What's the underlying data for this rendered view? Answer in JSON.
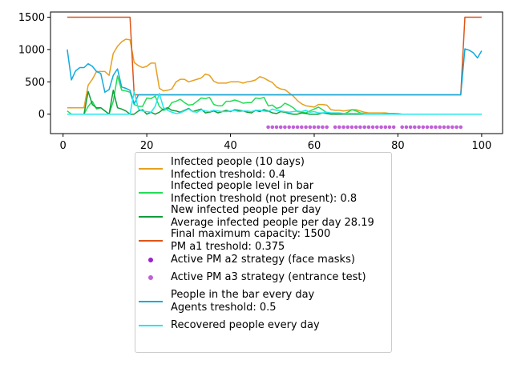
{
  "chart_data": {
    "type": "line",
    "xlim": [
      -3,
      105
    ],
    "ylim": [
      -300,
      1580
    ],
    "xticks": [
      0,
      20,
      40,
      60,
      80,
      100
    ],
    "yticks": [
      0,
      500,
      1000,
      1500
    ],
    "grid": false,
    "legend_placement": "below",
    "series": [
      {
        "name": "Infected people (10 days)\nInfection treshold: 0.4",
        "color": "#e6a020",
        "x": [
          1,
          2,
          3,
          4,
          5,
          6,
          7,
          8,
          9,
          10,
          11,
          12,
          13,
          14,
          15,
          16,
          17,
          18,
          19,
          20,
          21,
          22,
          23,
          24,
          25,
          26,
          27,
          28,
          29,
          30,
          31,
          32,
          33,
          34,
          35,
          36,
          37,
          38,
          39,
          40,
          41,
          42,
          43,
          44,
          45,
          46,
          47,
          48,
          49,
          50,
          51,
          52,
          53,
          54,
          55,
          56,
          57,
          58,
          59,
          60,
          61,
          62,
          63,
          64,
          65,
          66,
          67,
          68,
          69,
          70,
          71,
          72,
          73,
          74,
          75,
          76,
          77,
          78,
          79,
          80,
          81,
          82,
          83,
          84,
          85,
          86,
          87,
          88,
          89,
          90,
          91,
          92,
          93,
          94,
          95,
          96,
          97,
          98,
          99,
          100
        ],
        "y": [
          100,
          100,
          100,
          100,
          100,
          450,
          540,
          660,
          660,
          660,
          600,
          940,
          1050,
          1120,
          1160,
          1150,
          800,
          750,
          720,
          740,
          790,
          790,
          400,
          360,
          370,
          390,
          500,
          540,
          540,
          500,
          520,
          540,
          560,
          620,
          600,
          510,
          480,
          480,
          480,
          500,
          500,
          500,
          480,
          500,
          510,
          530,
          580,
          560,
          520,
          490,
          420,
          390,
          380,
          330,
          280,
          210,
          160,
          130,
          120,
          110,
          150,
          150,
          140,
          70,
          60,
          60,
          50,
          60,
          70,
          70,
          50,
          30,
          20,
          20,
          20,
          20,
          20,
          10,
          10,
          10,
          0,
          0,
          0,
          0,
          0,
          0,
          0,
          0,
          0,
          0,
          0,
          0,
          0,
          0,
          0,
          0,
          0,
          0,
          0,
          0
        ]
      },
      {
        "name": "Infected people level in bar\nInfection treshold (not present): 0.8",
        "color": "#22dd55",
        "x": [
          1,
          2,
          3,
          4,
          5,
          6,
          7,
          8,
          9,
          10,
          11,
          12,
          13,
          14,
          15,
          16,
          17,
          18,
          19,
          20,
          21,
          22,
          23,
          24,
          25,
          26,
          27,
          28,
          29,
          30,
          31,
          32,
          33,
          34,
          35,
          36,
          37,
          38,
          39,
          40,
          41,
          42,
          43,
          44,
          45,
          46,
          47,
          48,
          49,
          50,
          51,
          52,
          53,
          54,
          55,
          56,
          57,
          58,
          59,
          60,
          61,
          62,
          63,
          64,
          65,
          66,
          67,
          68,
          69,
          70,
          71,
          72,
          73,
          74,
          75,
          76,
          77,
          78,
          79,
          80,
          81,
          82,
          83,
          84,
          85,
          86,
          87,
          88,
          89,
          90,
          91,
          92,
          93,
          94,
          95,
          96,
          97,
          98,
          99,
          100
        ],
        "y": [
          50,
          0,
          0,
          0,
          0,
          120,
          200,
          80,
          100,
          50,
          0,
          200,
          590,
          370,
          360,
          340,
          150,
          120,
          120,
          250,
          240,
          280,
          120,
          60,
          80,
          180,
          200,
          230,
          180,
          140,
          150,
          200,
          250,
          240,
          260,
          150,
          130,
          130,
          200,
          200,
          220,
          200,
          170,
          180,
          180,
          250,
          240,
          260,
          130,
          140,
          90,
          110,
          170,
          140,
          100,
          40,
          30,
          20,
          50,
          80,
          110,
          70,
          20,
          10,
          10,
          0,
          0,
          30,
          70,
          50,
          20,
          10,
          0,
          0,
          0,
          0,
          10,
          10,
          10,
          0,
          0,
          0,
          0,
          0,
          0,
          0,
          0,
          0,
          0,
          0,
          0,
          0,
          0,
          0,
          0,
          0,
          0,
          0,
          0,
          0
        ]
      },
      {
        "name": "New infected people per day\nAverage infected people per day 28.19",
        "color": "#129c3c",
        "x": [
          1,
          2,
          3,
          4,
          5,
          6,
          7,
          8,
          9,
          10,
          11,
          12,
          13,
          14,
          15,
          16,
          17,
          18,
          19,
          20,
          21,
          22,
          23,
          24,
          25,
          26,
          27,
          28,
          29,
          30,
          31,
          32,
          33,
          34,
          35,
          36,
          37,
          38,
          39,
          40,
          41,
          42,
          43,
          44,
          45,
          46,
          47,
          48,
          49,
          50,
          51,
          52,
          53,
          54,
          55,
          56,
          57,
          58,
          59,
          60,
          61,
          62,
          63,
          64,
          65,
          66,
          67,
          68,
          69,
          70,
          71,
          72,
          73,
          74,
          75,
          76,
          77,
          78,
          79,
          80,
          81,
          82,
          83,
          84,
          85,
          86,
          87,
          88,
          89,
          90,
          91,
          92,
          93,
          94,
          95,
          96,
          97,
          98,
          99,
          100
        ],
        "y": [
          0,
          0,
          0,
          0,
          0,
          350,
          150,
          100,
          100,
          50,
          0,
          370,
          100,
          80,
          50,
          0,
          0,
          50,
          70,
          0,
          30,
          0,
          30,
          80,
          100,
          60,
          50,
          30,
          60,
          90,
          40,
          60,
          80,
          20,
          30,
          50,
          20,
          40,
          60,
          40,
          70,
          60,
          50,
          30,
          20,
          60,
          40,
          70,
          50,
          20,
          10,
          40,
          30,
          10,
          0,
          0,
          20,
          10,
          0,
          0,
          0,
          20,
          10,
          0,
          0,
          0,
          0,
          0,
          0,
          0,
          0,
          0,
          0,
          0,
          0,
          0,
          0,
          0,
          0,
          0,
          0,
          0,
          0,
          0,
          0,
          0,
          0,
          0,
          0,
          0,
          0,
          0,
          0,
          0,
          0,
          0,
          0,
          0,
          0,
          0
        ]
      },
      {
        "name": "Final maximum capacity: 1500\nPM a1 treshold: 0.375",
        "color": "#dd5518",
        "x": [
          1,
          16,
          17,
          95,
          96,
          97,
          98,
          99,
          100
        ],
        "y": [
          1500,
          1500,
          300,
          300,
          1500,
          1500,
          1500,
          1500,
          1500
        ]
      },
      {
        "name": "People in the bar every day\nAgents treshold: 0.5",
        "color": "#12aadd",
        "x": [
          1,
          2,
          3,
          4,
          5,
          6,
          7,
          8,
          9,
          10,
          11,
          12,
          13,
          14,
          15,
          16,
          17,
          18,
          19,
          20,
          21,
          22,
          23,
          24,
          25,
          26,
          27,
          28,
          29,
          30,
          31,
          32,
          33,
          34,
          35,
          36,
          37,
          38,
          39,
          40,
          41,
          42,
          43,
          44,
          45,
          46,
          47,
          48,
          49,
          50,
          51,
          52,
          53,
          54,
          55,
          56,
          57,
          58,
          59,
          60,
          61,
          62,
          63,
          64,
          65,
          66,
          67,
          68,
          69,
          70,
          71,
          72,
          73,
          74,
          75,
          76,
          77,
          78,
          79,
          80,
          81,
          82,
          83,
          84,
          85,
          86,
          87,
          88,
          89,
          90,
          91,
          92,
          93,
          94,
          95,
          96,
          97,
          98,
          99,
          100
        ],
        "y": [
          1000,
          530,
          670,
          720,
          720,
          780,
          740,
          660,
          630,
          340,
          380,
          600,
          700,
          420,
          400,
          370,
          160,
          300,
          300,
          300,
          300,
          300,
          300,
          300,
          300,
          300,
          300,
          300,
          300,
          300,
          300,
          300,
          300,
          300,
          300,
          300,
          300,
          300,
          300,
          300,
          300,
          300,
          300,
          300,
          300,
          300,
          300,
          300,
          300,
          300,
          300,
          300,
          300,
          300,
          300,
          300,
          300,
          300,
          300,
          300,
          300,
          300,
          300,
          300,
          300,
          300,
          300,
          300,
          300,
          300,
          300,
          300,
          300,
          300,
          300,
          300,
          300,
          300,
          300,
          300,
          300,
          300,
          300,
          300,
          300,
          300,
          300,
          300,
          300,
          300,
          300,
          300,
          300,
          300,
          300,
          1010,
          990,
          950,
          870,
          980
        ]
      },
      {
        "name": "Recovered people every day",
        "color": "#22e8f0",
        "x": [
          1,
          2,
          3,
          4,
          5,
          6,
          7,
          8,
          9,
          10,
          11,
          12,
          13,
          14,
          15,
          16,
          17,
          18,
          19,
          20,
          21,
          22,
          23,
          24,
          25,
          26,
          27,
          28,
          29,
          30,
          31,
          32,
          33,
          34,
          35,
          36,
          37,
          38,
          39,
          40,
          41,
          42,
          43,
          44,
          45,
          46,
          47,
          48,
          49,
          50,
          51,
          52,
          53,
          54,
          55,
          56,
          57,
          58,
          59,
          60,
          61,
          62,
          63,
          64,
          65,
          66,
          67,
          68,
          69,
          70,
          71,
          72,
          73,
          74,
          75,
          76,
          77,
          78,
          79,
          80,
          81,
          82,
          83,
          84,
          85,
          86,
          87,
          88,
          89,
          90,
          91,
          92,
          93,
          94,
          95,
          96,
          97,
          98,
          99,
          100
        ],
        "y": [
          0,
          0,
          0,
          0,
          0,
          0,
          0,
          0,
          0,
          0,
          0,
          0,
          0,
          0,
          0,
          0,
          350,
          80,
          50,
          40,
          30,
          120,
          320,
          100,
          60,
          30,
          10,
          20,
          50,
          80,
          40,
          30,
          70,
          50,
          40,
          60,
          50,
          40,
          40,
          50,
          60,
          40,
          50,
          50,
          40,
          60,
          60,
          50,
          40,
          80,
          60,
          50,
          40,
          30,
          40,
          50,
          40,
          60,
          30,
          40,
          20,
          20,
          30,
          20,
          20,
          20,
          10,
          10,
          10,
          10,
          10,
          0,
          0,
          0,
          0,
          0,
          0,
          0,
          0,
          0,
          0,
          0,
          0,
          0,
          0,
          0,
          0,
          0,
          0,
          0,
          0,
          0,
          0,
          0,
          0,
          0,
          0,
          0,
          0,
          0
        ]
      }
    ],
    "markers": [
      {
        "name": "Active PM a2 strategy (face masks)",
        "color": "#9922cc",
        "y": -200,
        "x": []
      },
      {
        "name": "Active PM a3 strategy (entrance test)",
        "color": "#c060d8",
        "y": -200,
        "x": [
          49,
          50,
          51,
          52,
          53,
          54,
          55,
          56,
          57,
          58,
          59,
          60,
          61,
          62,
          63,
          65,
          66,
          67,
          68,
          69,
          70,
          71,
          72,
          73,
          74,
          75,
          76,
          77,
          78,
          79,
          81,
          82,
          83,
          84,
          85,
          86,
          87,
          88,
          89,
          90,
          91,
          92,
          93,
          94,
          95
        ]
      }
    ]
  },
  "legend": {
    "entries": [
      {
        "kind": "line",
        "color": "#e6a020",
        "label": "Infected people (10 days)\nInfection treshold: 0.4"
      },
      {
        "kind": "line",
        "color": "#22dd55",
        "label": "Infected people level in bar\nInfection treshold (not present): 0.8"
      },
      {
        "kind": "line",
        "color": "#129c3c",
        "label": "New infected people per day\nAverage infected people per day 28.19"
      },
      {
        "kind": "line",
        "color": "#dd5518",
        "label": "Final maximum capacity: 1500\nPM a1 treshold: 0.375"
      },
      {
        "kind": "dot",
        "color": "#9922cc",
        "label": "Active PM a2 strategy (face masks)"
      },
      {
        "kind": "dot",
        "color": "#c060d8",
        "label": "Active PM a3 strategy (entrance test)"
      },
      {
        "kind": "line",
        "color": "#12aadd",
        "label": "People in the bar every day\nAgents treshold: 0.5"
      },
      {
        "kind": "line",
        "color": "#22e8f0",
        "label": "Recovered people every day"
      }
    ]
  }
}
